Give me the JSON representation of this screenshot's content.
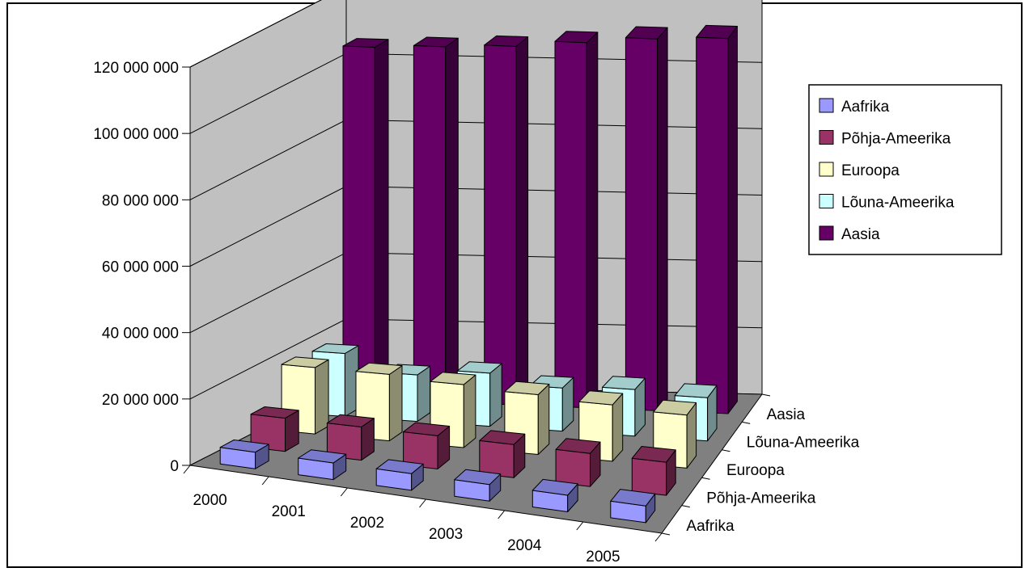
{
  "chart_data": {
    "type": "bar",
    "subtype": "3d-column",
    "title": "",
    "xlabel": "",
    "ylabel": "",
    "categories": [
      "2000",
      "2001",
      "2002",
      "2003",
      "2004",
      "2005"
    ],
    "y_tick_labels": [
      "0",
      "20 000 000",
      "40 000 000",
      "60 000 000",
      "80 000 000",
      "100 000 000",
      "120 000 000"
    ],
    "ylim": [
      0,
      120000000
    ],
    "grid": true,
    "legend_position": "right",
    "series": [
      {
        "name": "Aafrika",
        "color": "#9999ff",
        "values": [
          5000000,
          5000000,
          5000000,
          5000000,
          5000000,
          5000000
        ]
      },
      {
        "name": "Põhja-Ameerika",
        "color": "#993366",
        "values": [
          10000000,
          10000000,
          10000000,
          10000000,
          10000000,
          10000000
        ]
      },
      {
        "name": "Euroopa",
        "color": "#ffffcc",
        "values": [
          20000000,
          20000000,
          19000000,
          18000000,
          17000000,
          16000000
        ]
      },
      {
        "name": "Lõuna-Ameerika",
        "color": "#ccffff",
        "values": [
          19000000,
          14000000,
          16000000,
          13000000,
          14000000,
          13000000
        ]
      },
      {
        "name": "Aasia",
        "color": "#660066",
        "values": [
          106000000,
          107000000,
          108000000,
          110000000,
          112000000,
          113000000
        ]
      }
    ]
  }
}
